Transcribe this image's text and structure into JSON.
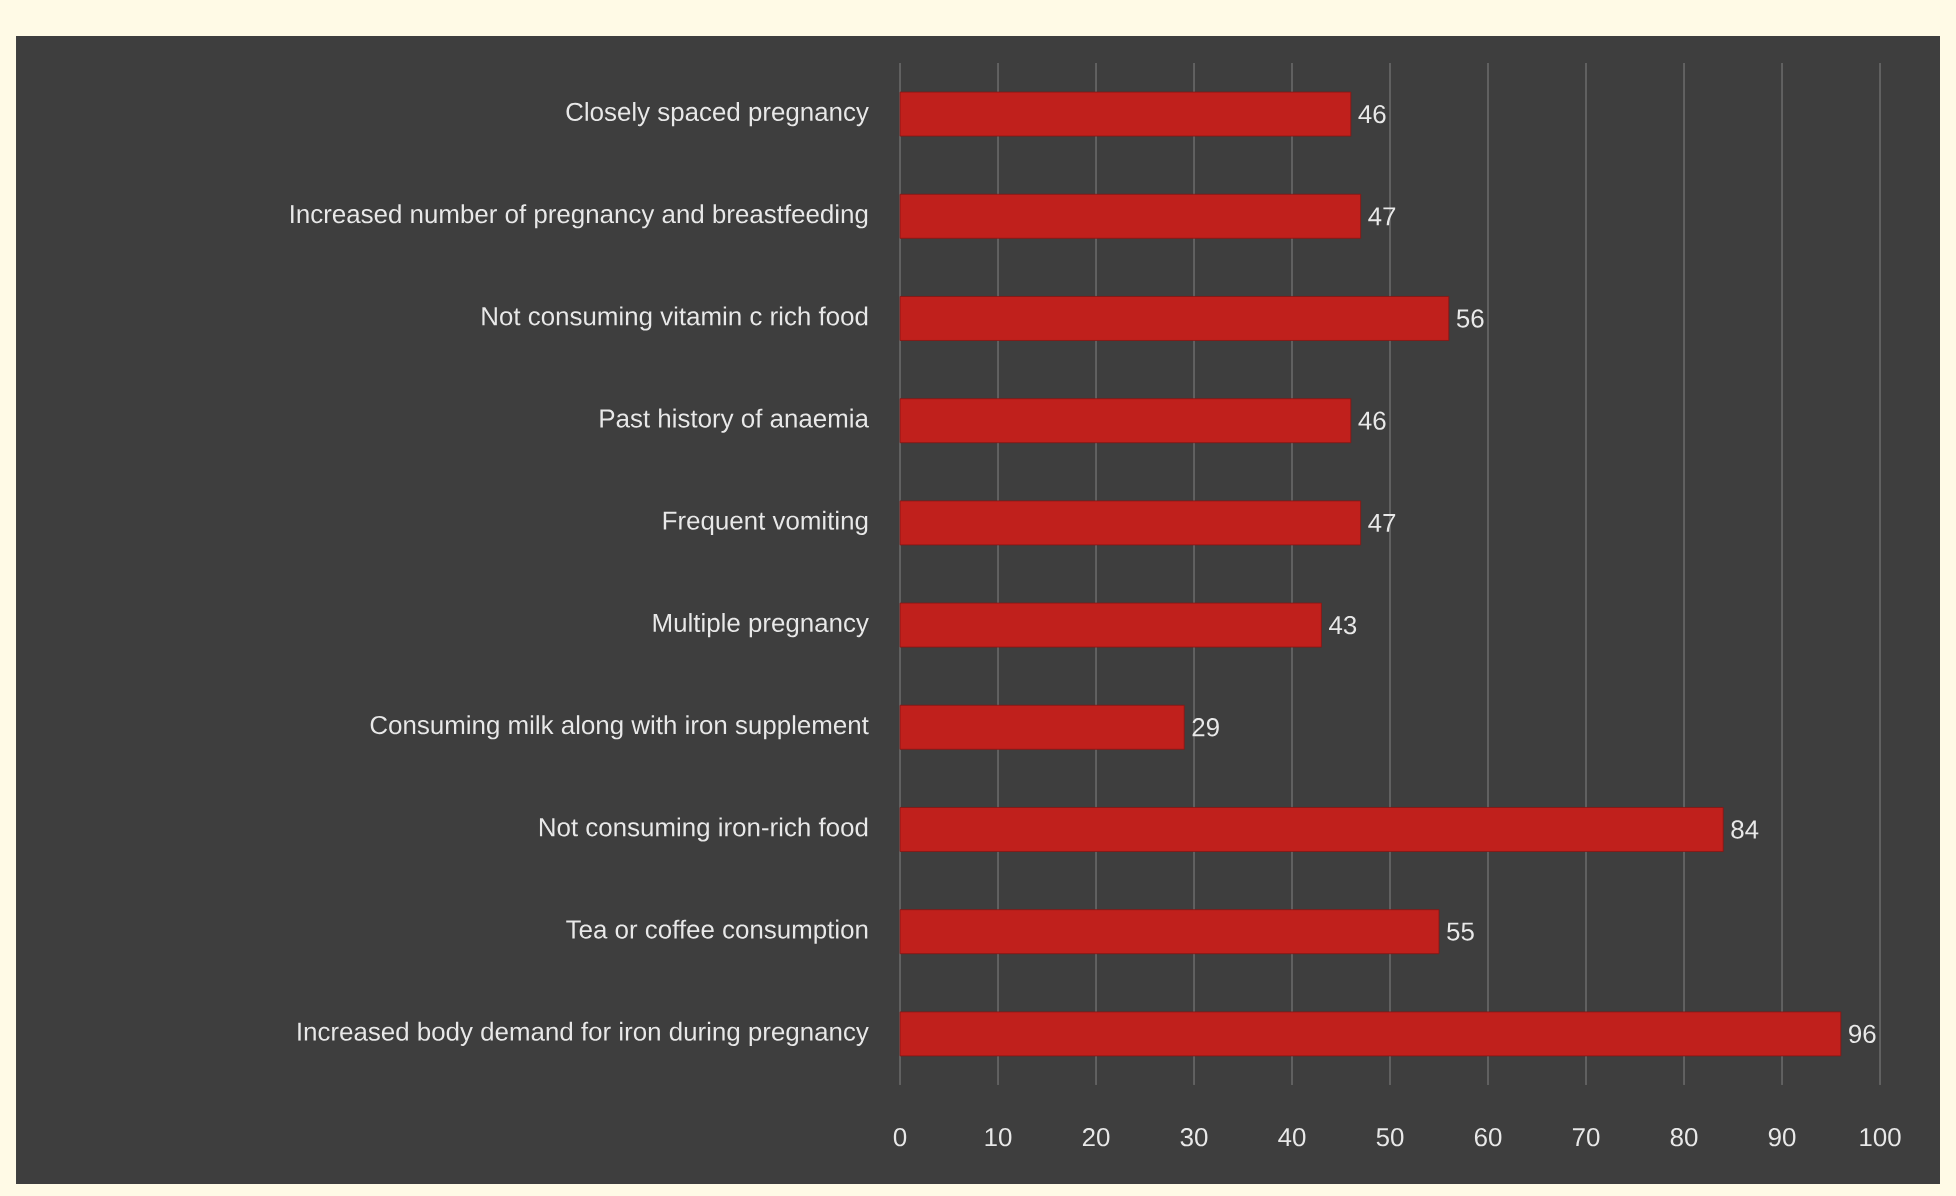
{
  "chart_data": {
    "type": "bar",
    "orientation": "horizontal",
    "categories": [
      "Closely spaced pregnancy",
      "Increased number of pregnancy and breastfeeding",
      "Not consuming vitamin c rich food",
      "Past history of anaemia",
      "Frequent vomiting",
      "Multiple pregnancy",
      "Consuming milk along with iron supplement",
      "Not consuming iron-rich food",
      "Tea or coffee consumption",
      "Increased body demand for iron during pregnancy"
    ],
    "values": [
      46,
      47,
      56,
      46,
      47,
      43,
      29,
      84,
      55,
      96
    ],
    "color": "#c0201c",
    "xlim": [
      0,
      100
    ],
    "xticks": [
      0,
      10,
      20,
      30,
      40,
      50,
      60,
      70,
      80,
      90,
      100
    ],
    "grid": "x",
    "data_labels": true
  }
}
